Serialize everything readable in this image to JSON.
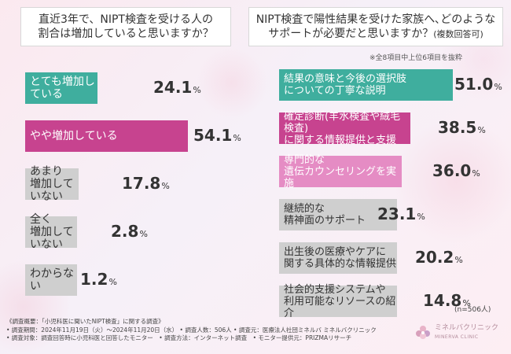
{
  "left_panel": {
    "title": "直近3年で、NIPT検査を受ける人の\n割合は増加していると思いますか？"
  },
  "right_panel": {
    "title": "NIPT検査で陽性結果を受けた家族へ､どのような\nサポートが必要だと思いますか？",
    "title_suffix": "(複数回答可)",
    "note": "※全8項目中上位6項目を抜粋"
  },
  "chart_data": [
    {
      "type": "bar",
      "orientation": "horizontal",
      "categories": [
        "とても増加している",
        "やや増加している",
        "あまり\n増加していない",
        "全く\n増加していない",
        "わからない"
      ],
      "values": [
        24.1,
        54.1,
        17.8,
        2.8,
        1.2
      ],
      "value_labels": [
        "24.1",
        "54.1",
        "17.8",
        "2.8",
        "1.2"
      ],
      "unit": "%",
      "colors": [
        "#3fae9e",
        "#c7438f",
        "#cfcfcf",
        "#cfcfcf",
        "#cfcfcf"
      ],
      "label_colors": [
        "#ffffff",
        "#ffffff",
        "#333333",
        "#333333",
        "#333333"
      ]
    },
    {
      "type": "bar",
      "orientation": "horizontal",
      "categories": [
        "結果の意味と今後の選択肢\nについての丁寧な説明",
        "確定診断(羊水検査や絨毛検査)\nに関する情報提供と支援",
        "専門的な\n遺伝カウンセリングを実施",
        "継続的な\n精神面のサポート",
        "出生後の医療やケアに\n関する具体的な情報提供",
        "社会的支援システムや\n利用可能なリソースの紹介"
      ],
      "values": [
        51.0,
        38.5,
        36.0,
        23.1,
        20.2,
        14.8
      ],
      "value_labels": [
        "51.0",
        "38.5",
        "36.0",
        "23.1",
        "20.2",
        "14.8"
      ],
      "unit": "%",
      "colors": [
        "#3fae9e",
        "#c7438f",
        "#e58cc4",
        "#cfcfcf",
        "#cfcfcf",
        "#cfcfcf"
      ],
      "label_colors": [
        "#ffffff",
        "#ffffff",
        "#ffffff",
        "#333333",
        "#333333",
        "#333333"
      ]
    }
  ],
  "n_label": "(n=506人)",
  "footer": {
    "line1": "《調査概要：「小児科医に聞いたNIPT検査」に関する調査》",
    "line2": "• 調査期間：2024年11月19日（火）〜2024年11月20日（水） • 調査人数：506人 • 調査元：医療法人社団ミネルバ ミネルバクリニック",
    "line3": "• 調査対象：調査回答時に小児科医と回答したモニター　• 調査方法：インターネット調査　• モニター提供元：PRIZMAリサーチ"
  },
  "logo": {
    "name": "ミネルバクリニック",
    "en": "MINERVA CLINIC"
  }
}
